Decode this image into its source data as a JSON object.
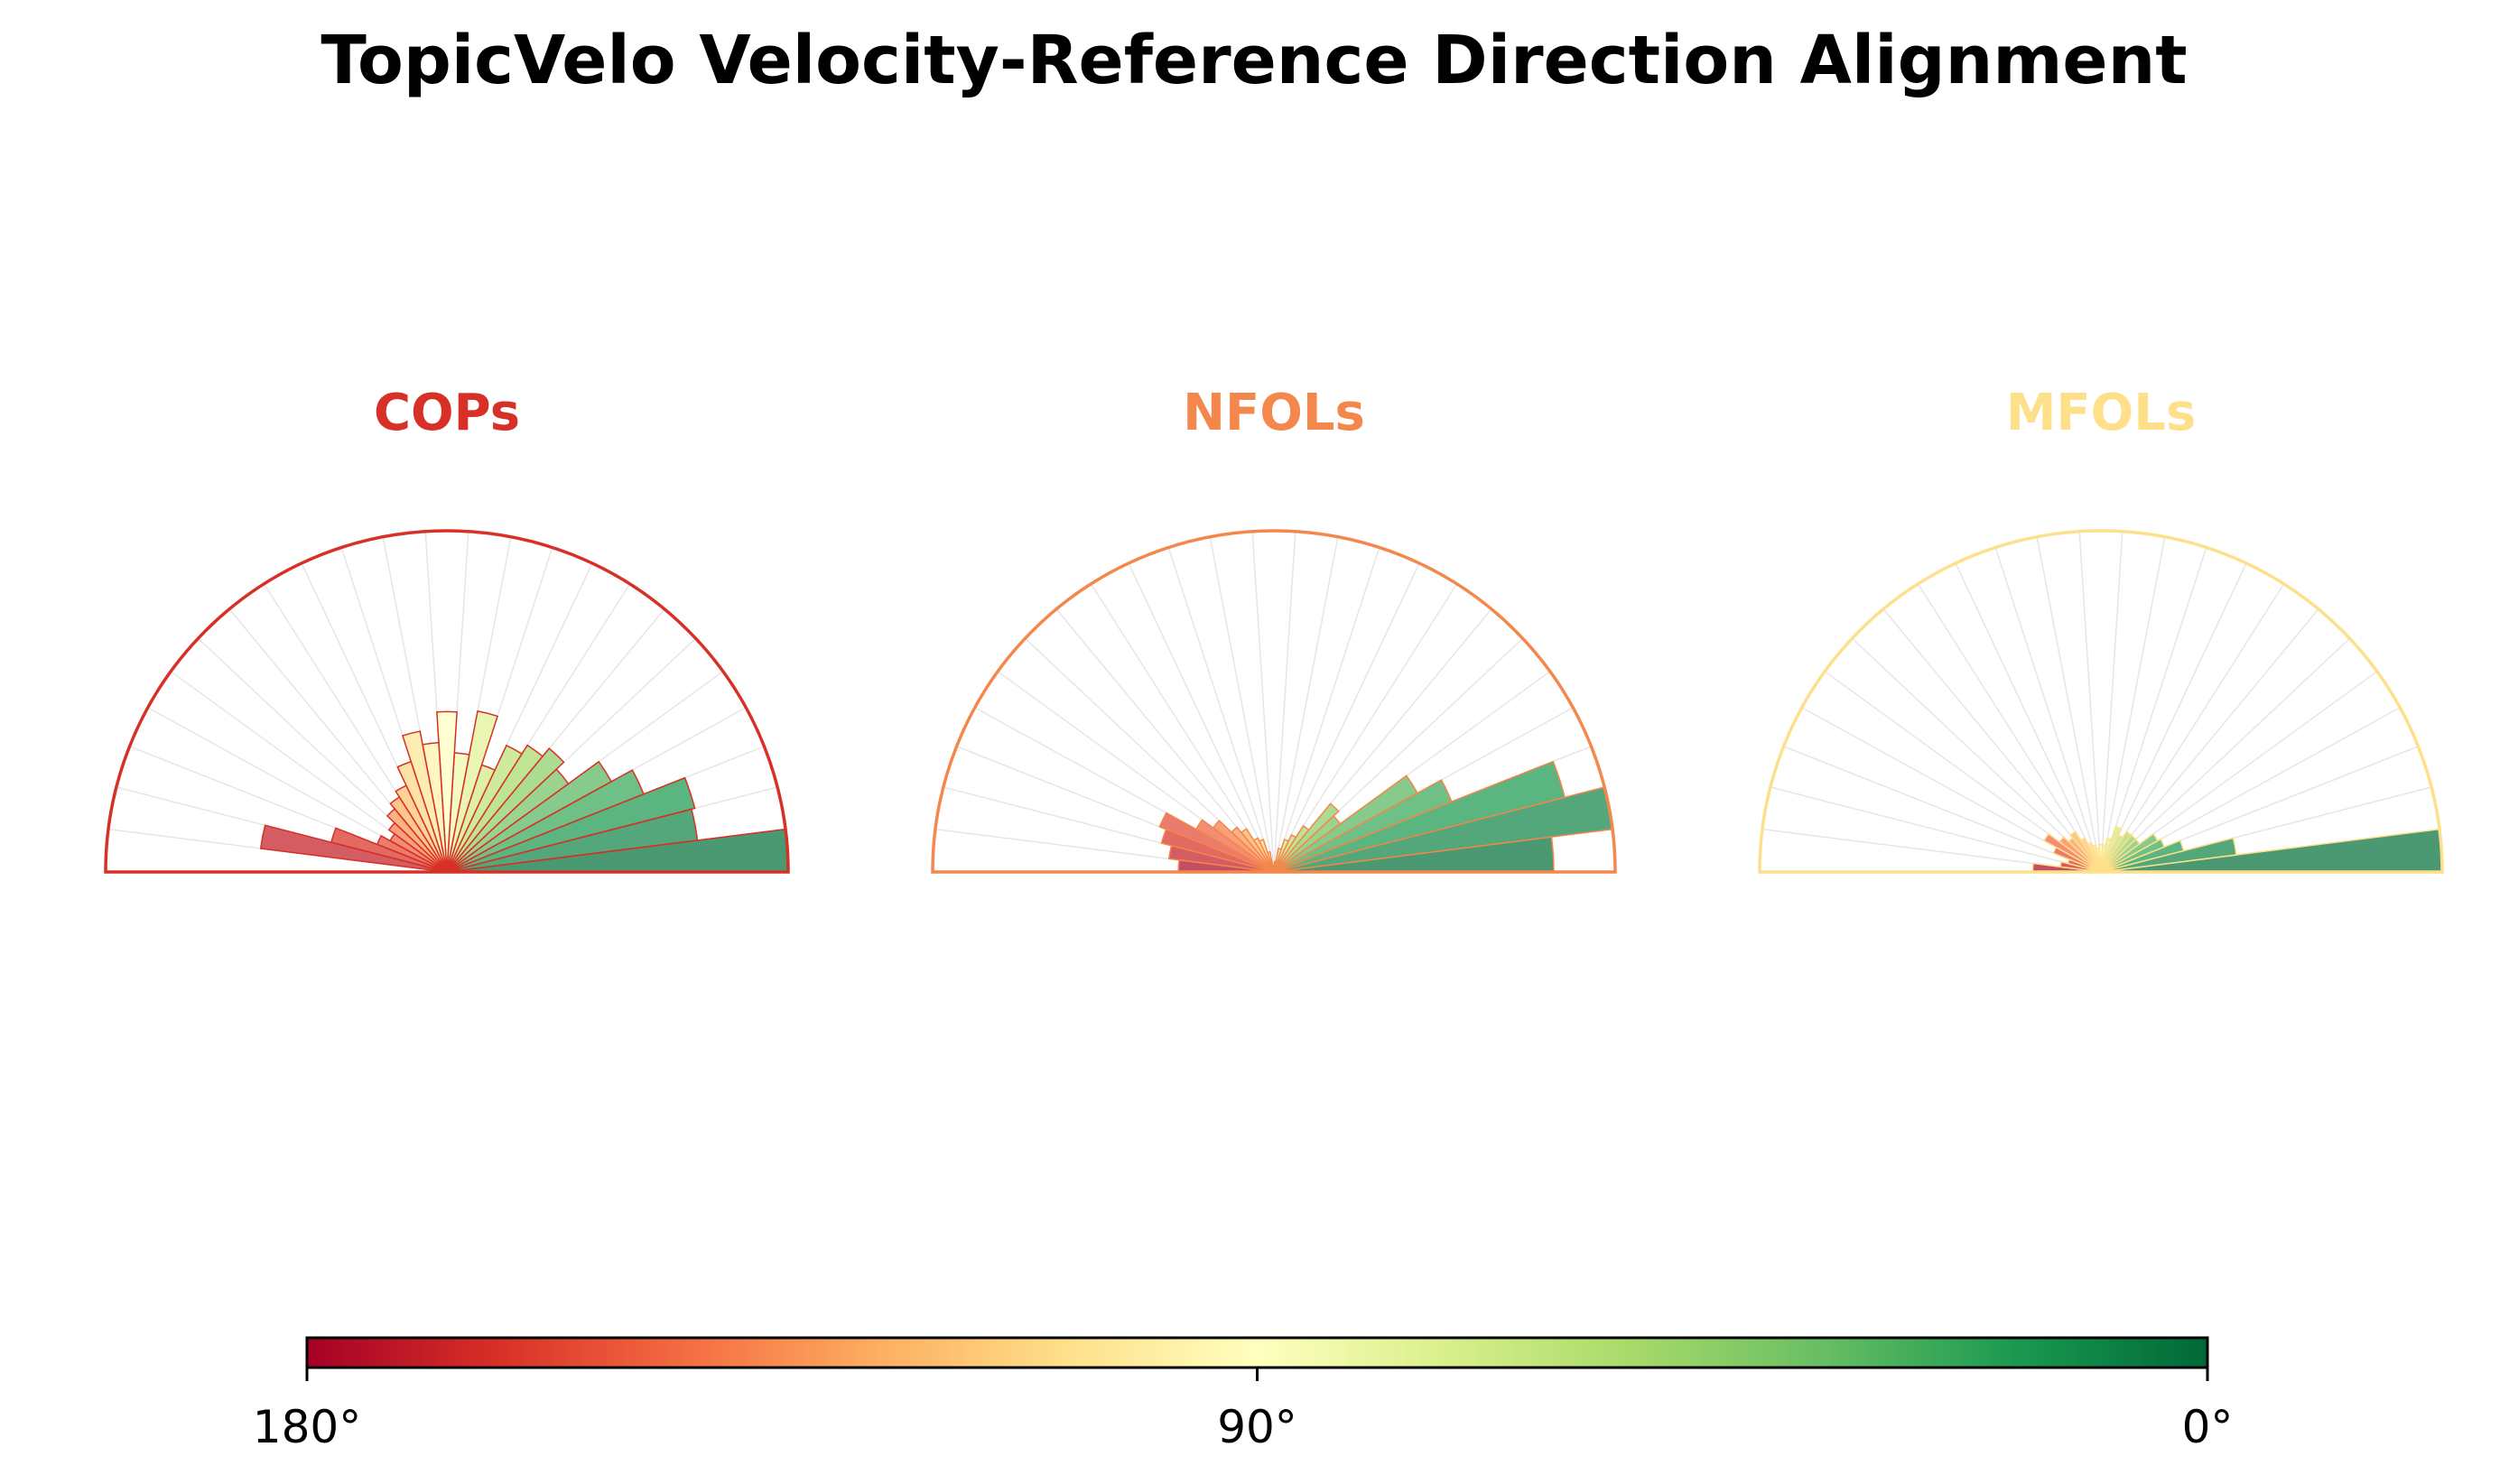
{
  "figure": {
    "title": "TopicVelo Velocity-Reference Direction Alignment"
  },
  "colorbar": {
    "colormap": "RdYlGn",
    "tick_labels": [
      "180°",
      "90°",
      "0°"
    ]
  },
  "chart_data": [
    {
      "type": "polar-bar",
      "title": "COPs",
      "title_color": "#d73027",
      "theta_range_deg": [
        0,
        180
      ],
      "bin_width_deg": 7.2,
      "radius_max": 1.0,
      "grid": true,
      "bin_centers_deg": [
        3.6,
        10.8,
        18,
        25.2,
        32.4,
        39.6,
        46.8,
        54,
        61.2,
        68.4,
        75.6,
        82.8,
        90,
        97.2,
        104.4,
        111.6,
        118.8,
        126,
        133.2,
        140.4,
        147.6,
        154.8,
        162,
        169.2,
        176.4
      ],
      "values": [
        1.0,
        0.74,
        0.75,
        0.62,
        0.55,
        0.44,
        0.47,
        0.44,
        0.41,
        0.33,
        0.48,
        0.35,
        0.47,
        0.38,
        0.42,
        0.34,
        0.28,
        0.26,
        0.24,
        0.21,
        0.19,
        0.22,
        0.35,
        0.55,
        0.01
      ]
    },
    {
      "type": "polar-bar",
      "title": "NFOLs",
      "title_color": "#f4874b",
      "theta_range_deg": [
        0,
        180
      ],
      "bin_width_deg": 7.2,
      "radius_max": 1.0,
      "grid": true,
      "bin_centers_deg": [
        3.6,
        10.8,
        18,
        25.2,
        32.4,
        39.6,
        46.8,
        54,
        61.2,
        68.4,
        75.6,
        82.8,
        90,
        97.2,
        104.4,
        111.6,
        118.8,
        126,
        133.2,
        140.4,
        147.6,
        154.8,
        162,
        169.2,
        176.4
      ],
      "values": [
        0.82,
        1.0,
        0.88,
        0.56,
        0.48,
        0.24,
        0.26,
        0.16,
        0.12,
        0.1,
        0.07,
        0.03,
        0.02,
        0.02,
        0.06,
        0.1,
        0.11,
        0.15,
        0.17,
        0.22,
        0.26,
        0.36,
        0.34,
        0.31,
        0.28
      ]
    },
    {
      "type": "polar-bar",
      "title": "MFOLs",
      "title_color": "#fee08b",
      "theta_range_deg": [
        0,
        180
      ],
      "bin_width_deg": 7.2,
      "radius_max": 1.0,
      "grid": true,
      "bin_centers_deg": [
        3.6,
        10.8,
        18,
        25.2,
        32.4,
        39.6,
        46.8,
        54,
        61.2,
        68.4,
        75.6,
        82.8,
        90,
        97.2,
        104.4,
        111.6,
        118.8,
        126,
        133.2,
        140.4,
        147.6,
        154.8,
        162,
        169.2,
        176.4
      ],
      "values": [
        1.0,
        0.4,
        0.25,
        0.2,
        0.19,
        0.14,
        0.14,
        0.14,
        0.12,
        0.14,
        0.1,
        0.08,
        0.08,
        0.07,
        0.08,
        0.09,
        0.11,
        0.14,
        0.13,
        0.15,
        0.19,
        0.15,
        0.1,
        0.12,
        0.2
      ]
    }
  ]
}
